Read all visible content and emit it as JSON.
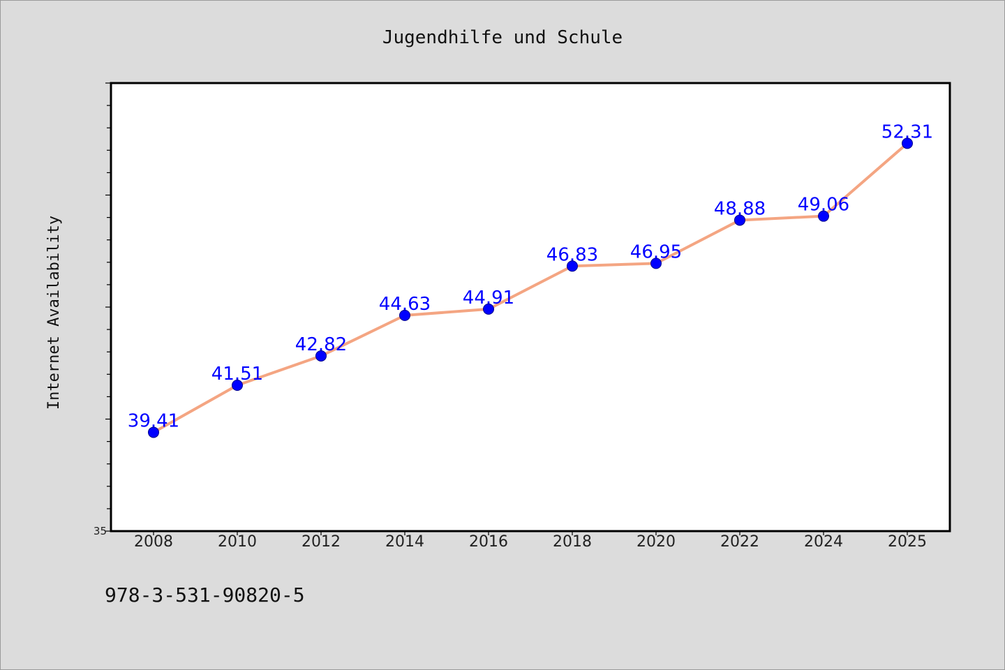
{
  "chart_data": {
    "type": "line",
    "title": "Jugendhilfe und Schule",
    "xlabel": "",
    "ylabel": "Internet Availability",
    "categories": [
      "2008",
      "2010",
      "2012",
      "2014",
      "2016",
      "2018",
      "2020",
      "2022",
      "2024",
      "2025"
    ],
    "series": [
      {
        "values": [
          39.41,
          41.51,
          42.82,
          44.63,
          44.91,
          46.83,
          46.95,
          48.88,
          49.06,
          52.31
        ],
        "labels": [
          "39.41",
          "41.51",
          "42.82",
          "44.63",
          "44.91",
          "46.83",
          "46.95",
          "48.88",
          "49.06",
          "52.31"
        ]
      }
    ],
    "ylim": [
      35,
      55
    ],
    "y_tick_labels": [
      "35"
    ],
    "grid": false,
    "legend": "none"
  },
  "footnote": "978-3-531-90820-5",
  "colors": {
    "background": "#dcdcdc",
    "plot_background": "#ffffff",
    "line": "#f4a582",
    "marker": "#0000ff",
    "data_label": "#0000ff"
  }
}
